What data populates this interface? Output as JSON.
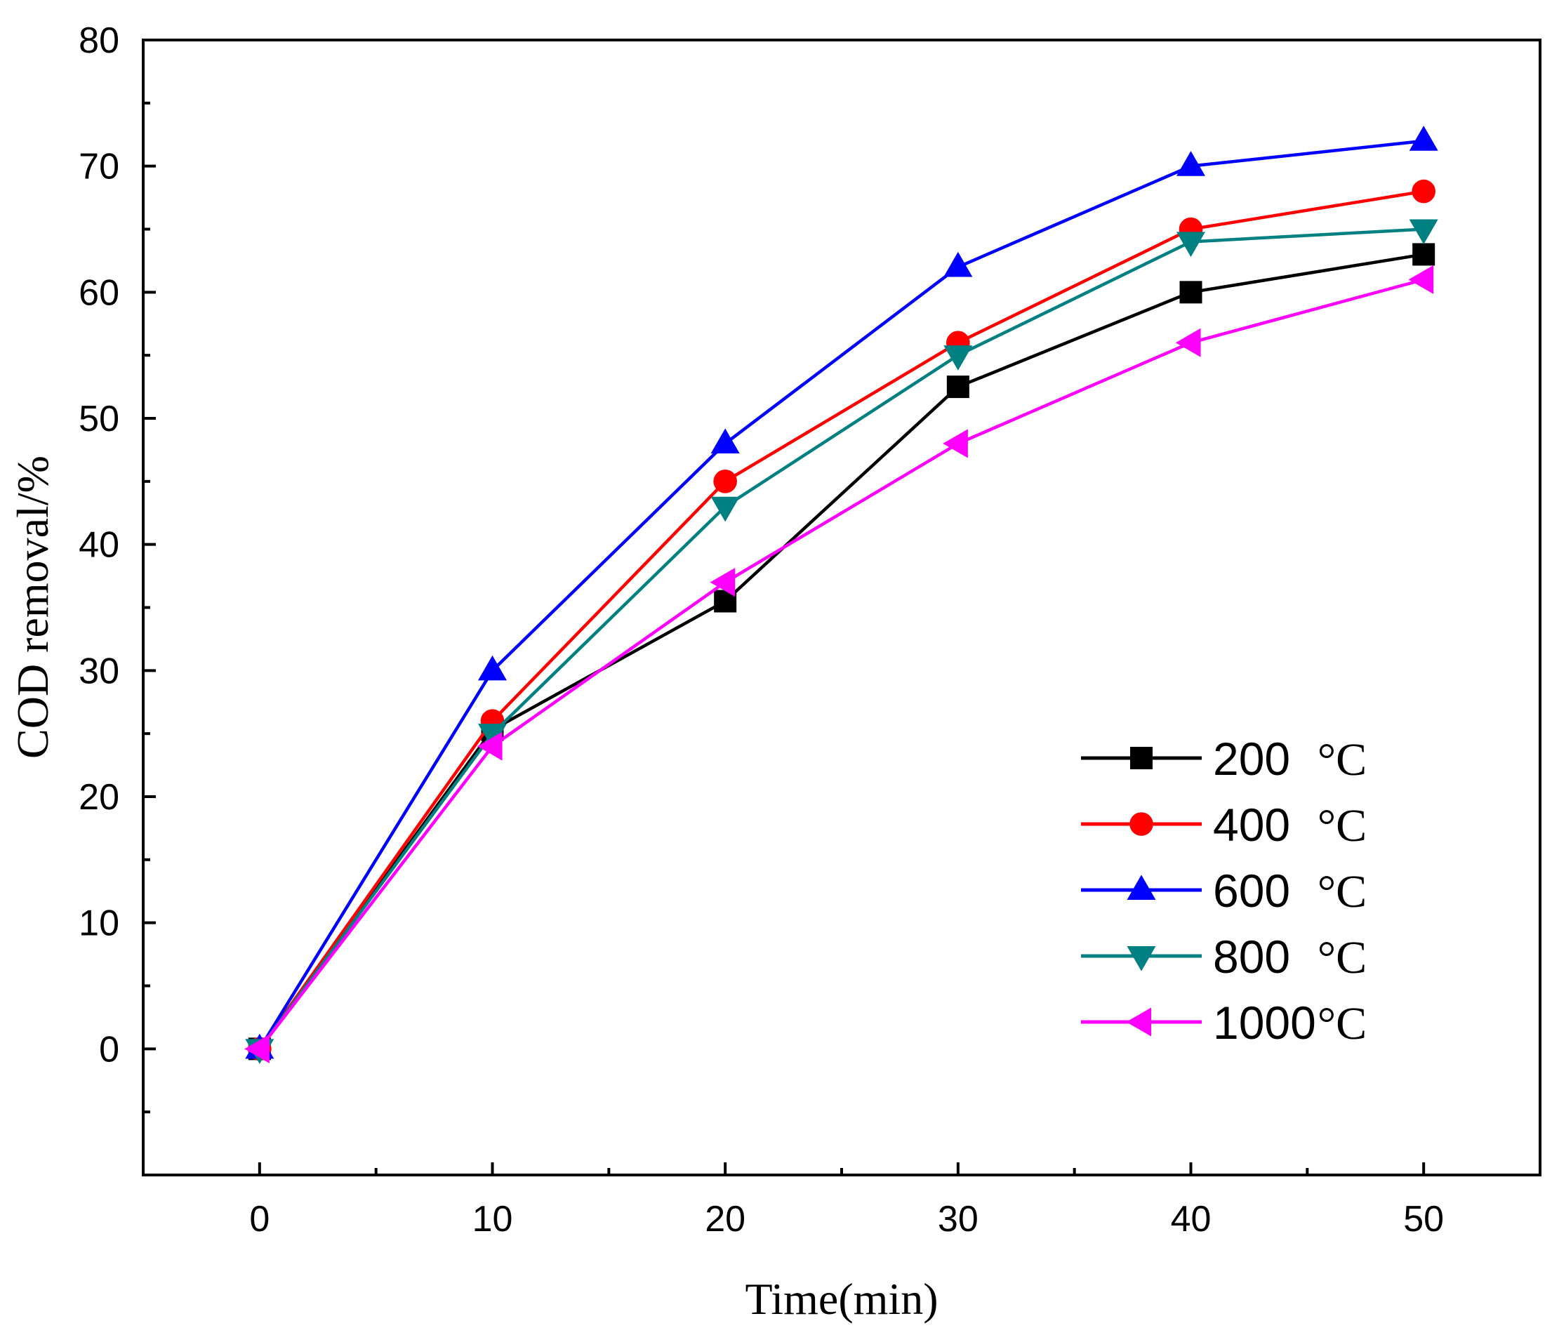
{
  "chart_data": {
    "type": "line",
    "title": "",
    "xlabel": "Time(min)",
    "ylabel": "COD removal/%",
    "xlim": [
      -5,
      55
    ],
    "ylim": [
      -10,
      80
    ],
    "x": [
      0,
      10,
      20,
      30,
      40,
      50
    ],
    "xticks": [
      0,
      10,
      20,
      30,
      40,
      50
    ],
    "xtick_labels": [
      "0",
      "10",
      "20",
      "30",
      "40",
      "50"
    ],
    "yticks": [
      0,
      10,
      20,
      30,
      40,
      50,
      60,
      70,
      80
    ],
    "ytick_labels": [
      "0",
      "10",
      "20",
      "30",
      "40",
      "50",
      "60",
      "70",
      "80"
    ],
    "grid": false,
    "legend_position": "bottom-right",
    "series": [
      {
        "name": "200 °C",
        "label_num": "200",
        "label_unit": "°C",
        "color": "#000000",
        "marker": "square",
        "values": [
          0,
          25.3,
          35.5,
          52.5,
          60,
          63
        ]
      },
      {
        "name": "400 °C",
        "label_num": "400",
        "label_unit": "°C",
        "color": "#ff0000",
        "marker": "circle",
        "values": [
          0,
          26,
          45,
          56,
          65,
          68
        ]
      },
      {
        "name": "600 °C",
        "label_num": "600",
        "label_unit": "°C",
        "color": "#0000ff",
        "marker": "triangle-up",
        "values": [
          0,
          30,
          48,
          62,
          70,
          72
        ]
      },
      {
        "name": "800 °C",
        "label_num": "800",
        "label_unit": "°C",
        "color": "#008080",
        "marker": "triangle-down",
        "values": [
          0,
          25,
          43,
          55,
          64,
          65
        ]
      },
      {
        "name": "1000°C",
        "label_num": "1000",
        "label_unit": "°C",
        "color": "#ff00ff",
        "marker": "triangle-left",
        "values": [
          0,
          24,
          37,
          48,
          56,
          61
        ]
      }
    ]
  }
}
